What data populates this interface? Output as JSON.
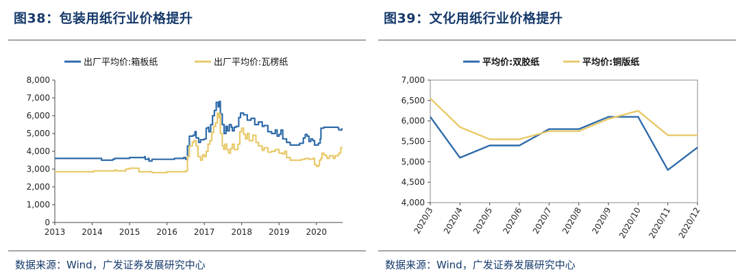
{
  "left": {
    "title": "图38：包装用纸行业价格提升",
    "source": "数据来源：Wind，广发证券发展研究中心",
    "chart_data": {
      "type": "line",
      "x_ticks": [
        "2013",
        "2014",
        "2015",
        "2016",
        "2017",
        "2018",
        "2019",
        "2020"
      ],
      "y_ticks": [
        "0",
        "1,000",
        "2,000",
        "3,000",
        "4,000",
        "5,000",
        "6,000",
        "7,000",
        "8,000"
      ],
      "xlim": [
        2013.0,
        2020.7
      ],
      "ylim": [
        0,
        8000
      ],
      "legend_position": "top",
      "series": [
        {
          "name": "出厂平均价:箱板纸",
          "color": "#2e6aa8",
          "points": [
            [
              2013.0,
              3600
            ],
            [
              2014.2,
              3600
            ],
            [
              2014.25,
              3500
            ],
            [
              2014.55,
              3550
            ],
            [
              2014.6,
              3600
            ],
            [
              2015.0,
              3650
            ],
            [
              2015.4,
              3700
            ],
            [
              2015.42,
              3550
            ],
            [
              2015.5,
              3600
            ],
            [
              2015.52,
              3450
            ],
            [
              2015.6,
              3550
            ],
            [
              2016.2,
              3600
            ],
            [
              2016.45,
              3650
            ],
            [
              2016.5,
              3550
            ],
            [
              2016.55,
              4300
            ],
            [
              2016.6,
              4850
            ],
            [
              2016.7,
              4900
            ],
            [
              2016.75,
              5100
            ],
            [
              2016.78,
              4750
            ],
            [
              2016.85,
              4500
            ],
            [
              2016.9,
              4650
            ],
            [
              2017.0,
              4700
            ],
            [
              2017.05,
              5300
            ],
            [
              2017.1,
              5350
            ],
            [
              2017.12,
              5100
            ],
            [
              2017.17,
              5500
            ],
            [
              2017.22,
              6000
            ],
            [
              2017.27,
              6300
            ],
            [
              2017.32,
              6750
            ],
            [
              2017.37,
              6500
            ],
            [
              2017.4,
              6800
            ],
            [
              2017.43,
              6100
            ],
            [
              2017.48,
              5500
            ],
            [
              2017.53,
              5000
            ],
            [
              2017.58,
              5400
            ],
            [
              2017.62,
              5150
            ],
            [
              2017.67,
              5500
            ],
            [
              2017.72,
              5350
            ],
            [
              2017.75,
              5150
            ],
            [
              2017.8,
              5350
            ],
            [
              2017.85,
              5400
            ],
            [
              2017.92,
              5900
            ],
            [
              2017.97,
              6150
            ],
            [
              2018.05,
              6050
            ],
            [
              2018.15,
              5750
            ],
            [
              2018.25,
              5850
            ],
            [
              2018.35,
              5500
            ],
            [
              2018.45,
              5650
            ],
            [
              2018.55,
              5400
            ],
            [
              2018.6,
              5450
            ],
            [
              2018.7,
              5100
            ],
            [
              2018.8,
              5000
            ],
            [
              2018.9,
              5200
            ],
            [
              2018.95,
              4850
            ],
            [
              2019.0,
              4950
            ],
            [
              2019.05,
              5200
            ],
            [
              2019.1,
              4700
            ],
            [
              2019.2,
              4500
            ],
            [
              2019.3,
              4350
            ],
            [
              2019.5,
              4350
            ],
            [
              2019.55,
              4450
            ],
            [
              2019.65,
              4750
            ],
            [
              2019.7,
              4950
            ],
            [
              2019.75,
              4850
            ],
            [
              2019.8,
              4550
            ],
            [
              2019.85,
              4700
            ],
            [
              2019.9,
              4600
            ],
            [
              2019.95,
              4350
            ],
            [
              2020.05,
              4450
            ],
            [
              2020.1,
              4700
            ],
            [
              2020.12,
              5300
            ],
            [
              2020.2,
              5350
            ],
            [
              2020.45,
              5350
            ],
            [
              2020.58,
              5300
            ],
            [
              2020.6,
              5200
            ],
            [
              2020.67,
              5200
            ],
            [
              2020.68,
              5300
            ]
          ]
        },
        {
          "name": "出厂平均价:瓦楞纸",
          "color": "#e8c96a",
          "points": [
            [
              2013.0,
              2850
            ],
            [
              2014.0,
              2850
            ],
            [
              2014.05,
              2900
            ],
            [
              2014.6,
              2950
            ],
            [
              2014.65,
              2900
            ],
            [
              2014.9,
              3000
            ],
            [
              2015.0,
              3050
            ],
            [
              2015.2,
              3050
            ],
            [
              2015.25,
              2850
            ],
            [
              2015.6,
              2800
            ],
            [
              2016.0,
              2850
            ],
            [
              2016.4,
              2850
            ],
            [
              2016.5,
              2900
            ],
            [
              2016.55,
              3700
            ],
            [
              2016.6,
              4300
            ],
            [
              2016.68,
              4500
            ],
            [
              2016.72,
              4600
            ],
            [
              2016.78,
              4300
            ],
            [
              2016.83,
              3700
            ],
            [
              2016.9,
              3500
            ],
            [
              2016.95,
              3800
            ],
            [
              2017.0,
              3700
            ],
            [
              2017.05,
              4000
            ],
            [
              2017.1,
              4400
            ],
            [
              2017.15,
              4600
            ],
            [
              2017.2,
              5050
            ],
            [
              2017.25,
              5400
            ],
            [
              2017.3,
              5600
            ],
            [
              2017.35,
              6150
            ],
            [
              2017.37,
              5900
            ],
            [
              2017.4,
              6100
            ],
            [
              2017.43,
              5000
            ],
            [
              2017.48,
              4300
            ],
            [
              2017.52,
              4100
            ],
            [
              2017.55,
              4400
            ],
            [
              2017.6,
              4100
            ],
            [
              2017.65,
              3900
            ],
            [
              2017.7,
              4150
            ],
            [
              2017.75,
              4400
            ],
            [
              2017.8,
              4100
            ],
            [
              2017.9,
              4400
            ],
            [
              2017.95,
              5100
            ],
            [
              2018.0,
              5300
            ],
            [
              2018.05,
              4950
            ],
            [
              2018.1,
              4700
            ],
            [
              2018.15,
              5000
            ],
            [
              2018.2,
              4600
            ],
            [
              2018.3,
              4900
            ],
            [
              2018.38,
              4500
            ],
            [
              2018.45,
              4300
            ],
            [
              2018.55,
              4050
            ],
            [
              2018.6,
              4200
            ],
            [
              2018.7,
              3950
            ],
            [
              2018.8,
              4000
            ],
            [
              2018.9,
              4100
            ],
            [
              2019.0,
              3900
            ],
            [
              2019.1,
              3850
            ],
            [
              2019.15,
              4000
            ],
            [
              2019.2,
              3650
            ],
            [
              2019.3,
              3500
            ],
            [
              2019.5,
              3500
            ],
            [
              2019.6,
              3550
            ],
            [
              2019.7,
              3600
            ],
            [
              2019.8,
              3550
            ],
            [
              2019.85,
              3550
            ],
            [
              2019.9,
              3600
            ],
            [
              2019.95,
              3250
            ],
            [
              2020.0,
              3150
            ],
            [
              2020.05,
              3200
            ],
            [
              2020.08,
              3500
            ],
            [
              2020.12,
              3600
            ],
            [
              2020.15,
              3900
            ],
            [
              2020.2,
              3800
            ],
            [
              2020.25,
              3750
            ],
            [
              2020.28,
              3600
            ],
            [
              2020.35,
              3750
            ],
            [
              2020.45,
              3600
            ],
            [
              2020.5,
              3750
            ],
            [
              2020.58,
              3800
            ],
            [
              2020.6,
              3900
            ],
            [
              2020.65,
              4200
            ],
            [
              2020.68,
              4250
            ]
          ]
        }
      ]
    }
  },
  "right": {
    "title": "图39：文化用纸行业价格提升",
    "source": "数据来源：Wind，广发证券发展研究中心",
    "chart_data": {
      "type": "line",
      "categories": [
        "2020/3",
        "2020/4",
        "2020/5",
        "2020/6",
        "2020/7",
        "2020/8",
        "2020/9",
        "2020/10",
        "2020/11",
        "2020/12"
      ],
      "y_ticks": [
        "4,000",
        "4,500",
        "5,000",
        "5,500",
        "6,000",
        "6,500",
        "7,000"
      ],
      "ylim": [
        4000,
        7000
      ],
      "grid": false,
      "legend_position": "top",
      "series": [
        {
          "name": "平均价:双胶纸",
          "color": "#2e6aa8",
          "values": [
            6100,
            5100,
            5400,
            5400,
            5800,
            5800,
            6100,
            6100,
            4800,
            5350
          ]
        },
        {
          "name": "平均价:铜版纸",
          "color": "#e8c96a",
          "values": [
            6550,
            5850,
            5550,
            5550,
            5750,
            5750,
            6050,
            6250,
            5650,
            5650
          ]
        }
      ]
    }
  }
}
